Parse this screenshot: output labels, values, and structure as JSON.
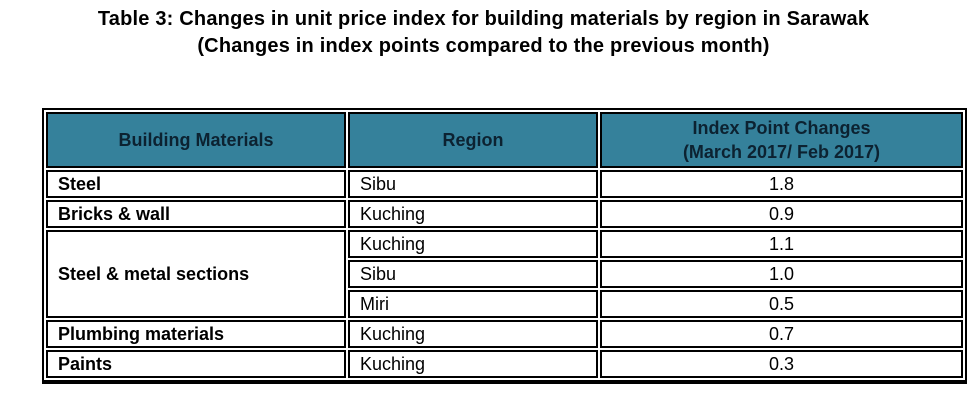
{
  "title": {
    "line1": "Table 3: Changes in unit price index for building materials by region in Sarawak",
    "line2": "(Changes in index points compared to the previous month)"
  },
  "colors": {
    "header_bg": "#35819B",
    "header_text": "#0C2231",
    "border": "#000000",
    "body_text": "#000000"
  },
  "table": {
    "headers": {
      "col1": "Building Materials",
      "col2": "Region",
      "col3_line1": "Index Point Changes",
      "col3_line2": "(March 2017/ Feb 2017)"
    },
    "groups": [
      {
        "material": "Steel",
        "rows": [
          {
            "region": "Sibu",
            "value": "1.8"
          }
        ]
      },
      {
        "material": "Bricks & wall",
        "rows": [
          {
            "region": "Kuching",
            "value": "0.9"
          }
        ]
      },
      {
        "material": "Steel & metal sections",
        "rows": [
          {
            "region": "Kuching",
            "value": "1.1"
          },
          {
            "region": "Sibu",
            "value": "1.0"
          },
          {
            "region": "Miri",
            "value": "0.5"
          }
        ]
      },
      {
        "material": "Plumbing materials",
        "rows": [
          {
            "region": "Kuching",
            "value": "0.7"
          }
        ]
      },
      {
        "material": "Paints",
        "rows": [
          {
            "region": "Kuching",
            "value": "0.3"
          }
        ]
      }
    ]
  }
}
